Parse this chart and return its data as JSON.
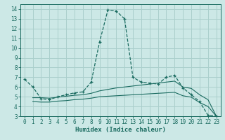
{
  "xlabel": "Humidex (Indice chaleur)",
  "bg_color": "#cce8e6",
  "grid_color": "#aacfcc",
  "line_color": "#1a6b60",
  "spine_color": "#1a6b60",
  "xlim": [
    -0.5,
    23.5
  ],
  "ylim": [
    3,
    14.5
  ],
  "xticks": [
    0,
    1,
    2,
    3,
    4,
    5,
    6,
    7,
    8,
    9,
    10,
    11,
    12,
    13,
    14,
    15,
    16,
    17,
    18,
    19,
    20,
    21,
    22,
    23
  ],
  "yticks": [
    3,
    4,
    5,
    6,
    7,
    8,
    9,
    10,
    11,
    12,
    13,
    14
  ],
  "curves": [
    {
      "x": [
        0,
        1,
        2,
        3,
        4,
        5,
        6,
        7,
        8,
        9,
        10,
        11,
        12,
        13,
        14,
        15,
        16,
        17,
        18,
        19,
        20,
        21,
        22,
        23
      ],
      "y": [
        6.8,
        6.0,
        4.8,
        4.7,
        5.0,
        5.2,
        5.4,
        5.5,
        6.5,
        10.6,
        13.9,
        13.8,
        13.0,
        7.0,
        6.5,
        6.4,
        6.3,
        7.0,
        7.2,
        5.9,
        5.2,
        4.5,
        3.1,
        3.0
      ],
      "dashed": true,
      "markers": true
    },
    {
      "x": [
        1,
        2,
        3,
        4,
        5,
        6,
        7,
        8,
        9,
        10,
        11,
        12,
        13,
        14,
        15,
        16,
        17,
        18,
        19,
        20,
        21,
        22,
        23
      ],
      "y": [
        4.9,
        4.9,
        4.85,
        4.95,
        5.05,
        5.15,
        5.2,
        5.35,
        5.6,
        5.75,
        5.9,
        6.0,
        6.1,
        6.2,
        6.3,
        6.4,
        6.5,
        6.6,
        6.0,
        5.85,
        5.2,
        4.7,
        3.0
      ],
      "dashed": false,
      "markers": false
    },
    {
      "x": [
        1,
        2,
        3,
        4,
        5,
        6,
        7,
        8,
        9,
        10,
        11,
        12,
        13,
        14,
        15,
        16,
        17,
        18,
        19,
        20,
        21,
        22,
        23
      ],
      "y": [
        4.5,
        4.45,
        4.45,
        4.55,
        4.6,
        4.7,
        4.75,
        4.85,
        5.0,
        5.05,
        5.1,
        5.15,
        5.2,
        5.25,
        5.3,
        5.35,
        5.4,
        5.45,
        5.1,
        4.95,
        4.4,
        4.0,
        3.0
      ],
      "dashed": false,
      "markers": false
    }
  ]
}
